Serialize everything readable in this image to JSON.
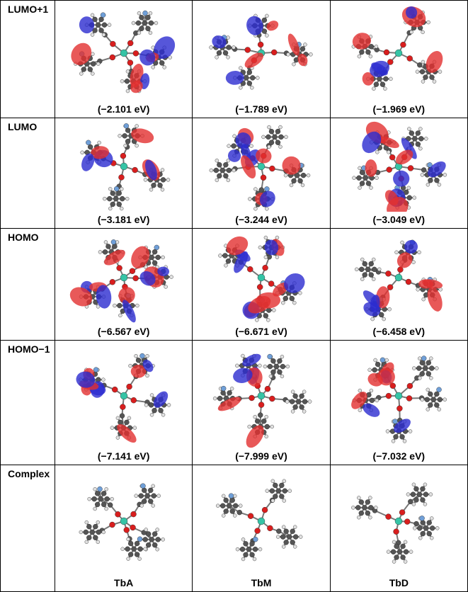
{
  "rows": [
    {
      "label": "LUMO+1",
      "values": [
        "(−2.101 eV)",
        "(−1.789 eV)",
        "(−1.969 eV)"
      ]
    },
    {
      "label": "LUMO",
      "values": [
        "(−3.181 eV)",
        "(−3.244 eV)",
        "(−3.049 eV)"
      ]
    },
    {
      "label": "HOMO",
      "values": [
        "(−6.567 eV)",
        "(−6.671 eV)",
        "(−6.458 eV)"
      ]
    },
    {
      "label": "HOMO−1",
      "values": [
        "(−7.141 eV)",
        "(−7.999 eV)",
        "(−7.032 eV)"
      ]
    },
    {
      "label": "Complex",
      "values": [
        "TbA",
        "TbM",
        "TbD"
      ]
    }
  ],
  "colors": {
    "orbital_positive": "#e23030",
    "orbital_negative": "#2c2ccf",
    "carbon": "#555555",
    "hydrogen": "#e0e0e0",
    "oxygen": "#d81e1e",
    "fluorine": "#6f9fd8",
    "terbium": "#35c4a6",
    "nitrogen": "#2d3bb0"
  }
}
